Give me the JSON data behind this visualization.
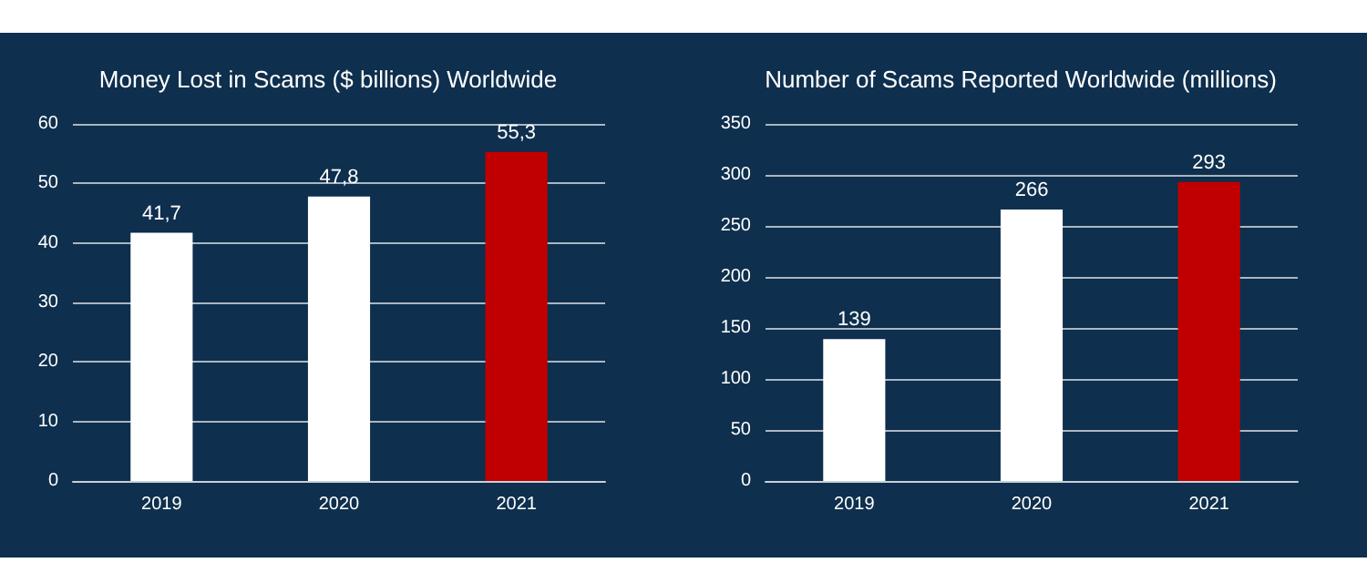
{
  "chart_data": [
    {
      "type": "bar",
      "title": "Money Lost in Scams ($ billions) Worldwide",
      "categories": [
        "2019",
        "2020",
        "2021"
      ],
      "values": [
        41.7,
        47.8,
        55.3
      ],
      "colors": [
        "#ffffff",
        "#ffffff",
        "#c00000"
      ],
      "value_labels": [
        "41,7",
        "47,8",
        "55,3"
      ],
      "ylim": [
        0,
        60
      ],
      "yticks": [
        0,
        10,
        20,
        30,
        40,
        50,
        60
      ],
      "grid": "y"
    },
    {
      "type": "bar",
      "title": "Number of Scams Reported Worldwide (millions)",
      "categories": [
        "2019",
        "2020",
        "2021"
      ],
      "values": [
        139,
        266,
        293
      ],
      "colors": [
        "#ffffff",
        "#ffffff",
        "#c00000"
      ],
      "data_labels": true,
      "ylim": [
        0,
        350
      ],
      "yticks": [
        0,
        50,
        100,
        150,
        200,
        250,
        300,
        350
      ],
      "grid": "y"
    }
  ]
}
